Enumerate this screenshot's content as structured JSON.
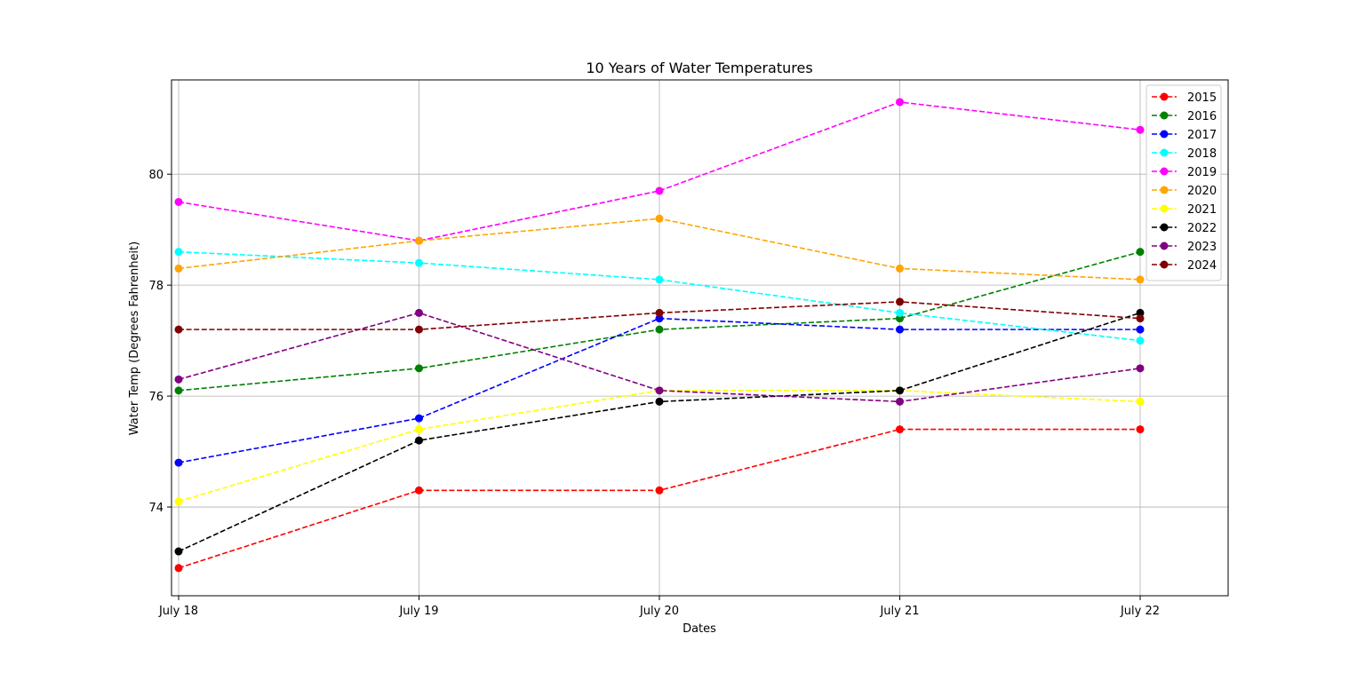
{
  "chart_data": {
    "type": "line",
    "title": "10 Years of Water Temperatures",
    "xlabel": "Dates",
    "ylabel": "Water Temp (Degrees Fahrenheit)",
    "categories": [
      "July 18",
      "July 19",
      "July 20",
      "July 21",
      "July 22"
    ],
    "x_range": [
      "July 18",
      "July 22"
    ],
    "ylim": [
      72.4,
      81.7
    ],
    "yticks": [
      74,
      76,
      78,
      80
    ],
    "grid": true,
    "line_style": "dashed",
    "marker": "circle",
    "legend_position": "top-right",
    "series": [
      {
        "name": "2015",
        "color": "#ff0000",
        "values": [
          72.9,
          74.3,
          74.3,
          75.4,
          75.4
        ]
      },
      {
        "name": "2016",
        "color": "#008000",
        "values": [
          76.1,
          76.5,
          77.2,
          77.4,
          78.6
        ]
      },
      {
        "name": "2017",
        "color": "#0000ff",
        "values": [
          74.8,
          75.6,
          77.4,
          77.2,
          77.2
        ]
      },
      {
        "name": "2018",
        "color": "#00ffff",
        "values": [
          78.6,
          78.4,
          78.1,
          77.5,
          77.0
        ]
      },
      {
        "name": "2019",
        "color": "#ff00ff",
        "values": [
          79.5,
          78.8,
          79.7,
          81.3,
          80.8
        ]
      },
      {
        "name": "2020",
        "color": "#ffa500",
        "values": [
          78.3,
          78.8,
          79.2,
          78.3,
          78.1
        ]
      },
      {
        "name": "2021",
        "color": "#ffff00",
        "values": [
          74.1,
          75.4,
          76.1,
          76.1,
          75.9
        ]
      },
      {
        "name": "2022",
        "color": "#000000",
        "values": [
          73.2,
          75.2,
          75.9,
          76.1,
          77.5
        ]
      },
      {
        "name": "2023",
        "color": "#800080",
        "values": [
          76.3,
          77.5,
          76.1,
          75.9,
          76.5
        ]
      },
      {
        "name": "2024",
        "color": "#800000",
        "values": [
          77.2,
          77.2,
          77.5,
          77.7,
          77.4
        ]
      }
    ]
  }
}
